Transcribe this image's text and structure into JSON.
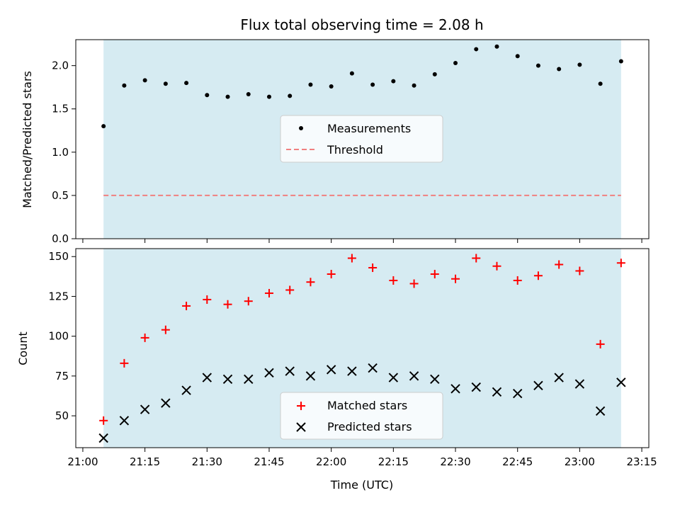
{
  "chart_data": [
    {
      "type": "scatter",
      "title": "Flux total observing time = 2.08 h",
      "ylabel": "Matched/Predicted stars",
      "ylim": [
        0,
        2.3
      ],
      "yticks": [
        0.0,
        0.5,
        1.0,
        1.5,
        2.0
      ],
      "ytick_labels": [
        "0.0",
        "0.5",
        "1.0",
        "1.5",
        "2.0"
      ],
      "grid": false,
      "legend_position": "center",
      "shaded_span": {
        "start": "21:05",
        "end": "23:10",
        "color": "#add8e6"
      },
      "series": [
        {
          "name": "Measurements",
          "marker": "dot",
          "color": "#000000",
          "x": [
            "21:05",
            "21:10",
            "21:15",
            "21:20",
            "21:25",
            "21:30",
            "21:35",
            "21:40",
            "21:45",
            "21:50",
            "21:55",
            "22:00",
            "22:05",
            "22:10",
            "22:15",
            "22:20",
            "22:25",
            "22:30",
            "22:35",
            "22:40",
            "22:45",
            "22:50",
            "22:55",
            "23:00",
            "23:05",
            "23:10"
          ],
          "y": [
            1.3,
            1.77,
            1.83,
            1.79,
            1.8,
            1.66,
            1.64,
            1.67,
            1.64,
            1.65,
            1.78,
            1.76,
            1.91,
            1.78,
            1.82,
            1.77,
            1.9,
            2.03,
            2.19,
            2.22,
            2.11,
            2.0,
            1.96,
            2.01,
            1.79,
            2.05
          ]
        },
        {
          "name": "Threshold",
          "marker": "dashed-line",
          "color": "#f08080",
          "x": [
            "21:05",
            "23:10"
          ],
          "y": [
            0.5,
            0.5
          ]
        }
      ]
    },
    {
      "type": "scatter",
      "xlabel": "Time (UTC)",
      "ylabel": "Count",
      "ylim": [
        30,
        155
      ],
      "yticks": [
        50,
        75,
        100,
        125,
        150
      ],
      "ytick_labels": [
        "50",
        "75",
        "100",
        "125",
        "150"
      ],
      "xlim": [
        "21:00",
        "23:15"
      ],
      "xticks": [
        "21:00",
        "21:15",
        "21:30",
        "21:45",
        "22:00",
        "22:15",
        "22:30",
        "22:45",
        "23:00",
        "23:15"
      ],
      "grid": false,
      "legend_position": "lower center",
      "shaded_span": {
        "start": "21:05",
        "end": "23:10",
        "color": "#add8e6"
      },
      "series": [
        {
          "name": "Matched stars",
          "marker": "plus",
          "color": "#ff0000",
          "x": [
            "21:05",
            "21:10",
            "21:15",
            "21:20",
            "21:25",
            "21:30",
            "21:35",
            "21:40",
            "21:45",
            "21:50",
            "21:55",
            "22:00",
            "22:05",
            "22:10",
            "22:15",
            "22:20",
            "22:25",
            "22:30",
            "22:35",
            "22:40",
            "22:45",
            "22:50",
            "22:55",
            "23:00",
            "23:05",
            "23:10"
          ],
          "y": [
            47,
            83,
            99,
            104,
            119,
            123,
            120,
            122,
            127,
            129,
            134,
            139,
            149,
            143,
            135,
            133,
            139,
            136,
            149,
            144,
            135,
            138,
            145,
            141,
            95,
            146
          ]
        },
        {
          "name": "Predicted stars",
          "marker": "x",
          "color": "#000000",
          "x": [
            "21:05",
            "21:10",
            "21:15",
            "21:20",
            "21:25",
            "21:30",
            "21:35",
            "21:40",
            "21:45",
            "21:50",
            "21:55",
            "22:00",
            "22:05",
            "22:10",
            "22:15",
            "22:20",
            "22:25",
            "22:30",
            "22:35",
            "22:40",
            "22:45",
            "22:50",
            "22:55",
            "23:00",
            "23:05",
            "23:10"
          ],
          "y": [
            36,
            47,
            54,
            58,
            66,
            74,
            73,
            73,
            77,
            78,
            75,
            79,
            78,
            80,
            74,
            75,
            73,
            67,
            68,
            65,
            64,
            69,
            74,
            70,
            53,
            71
          ]
        }
      ]
    }
  ]
}
